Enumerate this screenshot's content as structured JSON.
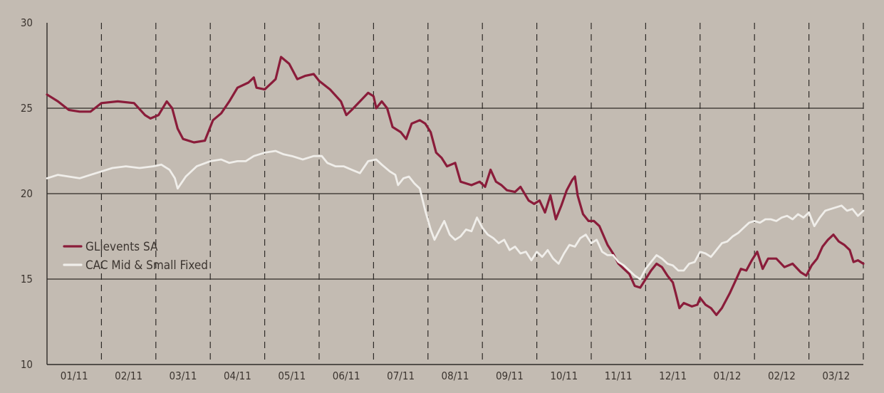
{
  "chart_data": {
    "type": "line",
    "title": "",
    "xlabel": "",
    "ylabel": "",
    "ylim": [
      10,
      30
    ],
    "yticks": [
      10,
      15,
      20,
      25,
      30
    ],
    "x_labels": [
      "01/11",
      "02/11",
      "03/11",
      "04/11",
      "05/11",
      "06/11",
      "07/11",
      "08/11",
      "09/11",
      "10/11",
      "11/11",
      "12/11",
      "01/12",
      "02/12",
      "03/12"
    ],
    "grid": {
      "horizontal": "solid at 15, 20, 25",
      "vertical": "dashed at month boundaries"
    },
    "legend_position": "left-middle",
    "colors": {
      "background": "#c3bbb2",
      "axis": "#2e2a27",
      "grid_horizontal": "#2e2a27",
      "grid_vertical": "#2e2a27",
      "text": "#3c3530"
    },
    "series": [
      {
        "name": "GLievents SA",
        "color": "#8a1c3a",
        "points": [
          [
            0.0,
            25.8
          ],
          [
            0.2,
            25.4
          ],
          [
            0.4,
            24.9
          ],
          [
            0.6,
            24.8
          ],
          [
            0.8,
            24.8
          ],
          [
            1.0,
            25.3
          ],
          [
            1.3,
            25.4
          ],
          [
            1.6,
            25.3
          ],
          [
            1.8,
            24.6
          ],
          [
            1.9,
            24.4
          ],
          [
            2.05,
            24.6
          ],
          [
            2.2,
            25.4
          ],
          [
            2.3,
            25.0
          ],
          [
            2.4,
            23.8
          ],
          [
            2.5,
            23.2
          ],
          [
            2.7,
            23.0
          ],
          [
            2.9,
            23.1
          ],
          [
            3.05,
            24.3
          ],
          [
            3.2,
            24.7
          ],
          [
            3.35,
            25.4
          ],
          [
            3.5,
            26.2
          ],
          [
            3.7,
            26.5
          ],
          [
            3.8,
            26.8
          ],
          [
            3.85,
            26.2
          ],
          [
            4.0,
            26.1
          ],
          [
            4.2,
            26.7
          ],
          [
            4.3,
            28.0
          ],
          [
            4.45,
            27.6
          ],
          [
            4.6,
            26.7
          ],
          [
            4.75,
            26.9
          ],
          [
            4.9,
            27.0
          ],
          [
            5.0,
            26.6
          ],
          [
            5.2,
            26.1
          ],
          [
            5.4,
            25.4
          ],
          [
            5.5,
            24.6
          ],
          [
            5.6,
            24.9
          ],
          [
            5.75,
            25.4
          ],
          [
            5.9,
            25.9
          ],
          [
            6.0,
            25.7
          ],
          [
            6.05,
            25.0
          ],
          [
            6.15,
            25.4
          ],
          [
            6.25,
            25.0
          ],
          [
            6.35,
            23.9
          ],
          [
            6.5,
            23.6
          ],
          [
            6.6,
            23.2
          ],
          [
            6.7,
            24.1
          ],
          [
            6.85,
            24.3
          ],
          [
            6.95,
            24.1
          ],
          [
            7.05,
            23.6
          ],
          [
            7.15,
            22.4
          ],
          [
            7.25,
            22.1
          ],
          [
            7.35,
            21.6
          ],
          [
            7.5,
            21.8
          ],
          [
            7.6,
            20.7
          ],
          [
            7.8,
            20.5
          ],
          [
            7.95,
            20.7
          ],
          [
            8.05,
            20.4
          ],
          [
            8.15,
            21.4
          ],
          [
            8.25,
            20.7
          ],
          [
            8.35,
            20.5
          ],
          [
            8.45,
            20.2
          ],
          [
            8.6,
            20.1
          ],
          [
            8.7,
            20.4
          ],
          [
            8.85,
            19.6
          ],
          [
            8.95,
            19.4
          ],
          [
            9.05,
            19.6
          ],
          [
            9.15,
            18.9
          ],
          [
            9.25,
            19.9
          ],
          [
            9.35,
            18.5
          ],
          [
            9.45,
            19.3
          ],
          [
            9.55,
            20.2
          ],
          [
            9.65,
            20.8
          ],
          [
            9.7,
            21.0
          ],
          [
            9.75,
            19.9
          ],
          [
            9.85,
            18.8
          ],
          [
            9.95,
            18.4
          ],
          [
            10.05,
            18.4
          ],
          [
            10.15,
            18.1
          ],
          [
            10.3,
            17.0
          ],
          [
            10.4,
            16.5
          ],
          [
            10.5,
            15.9
          ],
          [
            10.6,
            15.6
          ],
          [
            10.7,
            15.3
          ],
          [
            10.8,
            14.6
          ],
          [
            10.9,
            14.5
          ],
          [
            11.0,
            15.0
          ],
          [
            11.1,
            15.5
          ],
          [
            11.2,
            15.9
          ],
          [
            11.3,
            15.7
          ],
          [
            11.4,
            15.2
          ],
          [
            11.5,
            14.8
          ],
          [
            11.55,
            14.2
          ],
          [
            11.62,
            13.3
          ],
          [
            11.7,
            13.6
          ],
          [
            11.85,
            13.4
          ],
          [
            11.95,
            13.5
          ],
          [
            12.0,
            13.9
          ],
          [
            12.1,
            13.5
          ],
          [
            12.2,
            13.3
          ],
          [
            12.3,
            12.9
          ],
          [
            12.4,
            13.3
          ],
          [
            12.55,
            14.2
          ],
          [
            12.65,
            14.9
          ],
          [
            12.75,
            15.6
          ],
          [
            12.85,
            15.5
          ],
          [
            12.95,
            16.1
          ],
          [
            13.05,
            16.6
          ],
          [
            13.15,
            15.6
          ],
          [
            13.25,
            16.2
          ],
          [
            13.4,
            16.2
          ],
          [
            13.55,
            15.7
          ],
          [
            13.7,
            15.9
          ],
          [
            13.85,
            15.4
          ],
          [
            13.95,
            15.2
          ],
          [
            14.05,
            15.8
          ],
          [
            14.15,
            16.2
          ],
          [
            14.25,
            16.9
          ],
          [
            14.35,
            17.3
          ],
          [
            14.45,
            17.6
          ],
          [
            14.55,
            17.2
          ],
          [
            14.65,
            17.0
          ],
          [
            14.75,
            16.7
          ],
          [
            14.82,
            16.0
          ],
          [
            14.9,
            16.1
          ],
          [
            15.0,
            15.9
          ]
        ]
      },
      {
        "name": "CAC Mid & Small Fixed",
        "color": "#f0eeea",
        "points": [
          [
            0.0,
            20.9
          ],
          [
            0.2,
            21.1
          ],
          [
            0.4,
            21.0
          ],
          [
            0.6,
            20.9
          ],
          [
            0.8,
            21.1
          ],
          [
            1.0,
            21.3
          ],
          [
            1.2,
            21.5
          ],
          [
            1.45,
            21.6
          ],
          [
            1.7,
            21.5
          ],
          [
            1.95,
            21.6
          ],
          [
            2.1,
            21.7
          ],
          [
            2.25,
            21.4
          ],
          [
            2.35,
            20.9
          ],
          [
            2.4,
            20.3
          ],
          [
            2.55,
            21.0
          ],
          [
            2.75,
            21.6
          ],
          [
            3.0,
            21.9
          ],
          [
            3.2,
            22.0
          ],
          [
            3.35,
            21.8
          ],
          [
            3.5,
            21.9
          ],
          [
            3.65,
            21.9
          ],
          [
            3.8,
            22.2
          ],
          [
            4.0,
            22.4
          ],
          [
            4.2,
            22.5
          ],
          [
            4.35,
            22.3
          ],
          [
            4.5,
            22.2
          ],
          [
            4.7,
            22.0
          ],
          [
            4.9,
            22.2
          ],
          [
            5.05,
            22.2
          ],
          [
            5.15,
            21.8
          ],
          [
            5.3,
            21.6
          ],
          [
            5.45,
            21.6
          ],
          [
            5.6,
            21.4
          ],
          [
            5.75,
            21.2
          ],
          [
            5.9,
            21.9
          ],
          [
            6.05,
            22.0
          ],
          [
            6.15,
            21.7
          ],
          [
            6.3,
            21.3
          ],
          [
            6.4,
            21.1
          ],
          [
            6.45,
            20.5
          ],
          [
            6.55,
            20.9
          ],
          [
            6.65,
            21.0
          ],
          [
            6.75,
            20.6
          ],
          [
            6.85,
            20.3
          ],
          [
            6.95,
            19.0
          ],
          [
            7.05,
            17.9
          ],
          [
            7.12,
            17.3
          ],
          [
            7.2,
            17.8
          ],
          [
            7.3,
            18.4
          ],
          [
            7.4,
            17.6
          ],
          [
            7.5,
            17.3
          ],
          [
            7.6,
            17.5
          ],
          [
            7.7,
            17.9
          ],
          [
            7.8,
            17.8
          ],
          [
            7.9,
            18.6
          ],
          [
            8.0,
            18.0
          ],
          [
            8.1,
            17.6
          ],
          [
            8.2,
            17.4
          ],
          [
            8.3,
            17.1
          ],
          [
            8.4,
            17.3
          ],
          [
            8.5,
            16.7
          ],
          [
            8.6,
            16.9
          ],
          [
            8.7,
            16.5
          ],
          [
            8.8,
            16.6
          ],
          [
            8.9,
            16.1
          ],
          [
            9.0,
            16.6
          ],
          [
            9.1,
            16.3
          ],
          [
            9.2,
            16.7
          ],
          [
            9.3,
            16.2
          ],
          [
            9.4,
            15.9
          ],
          [
            9.5,
            16.5
          ],
          [
            9.6,
            17.0
          ],
          [
            9.7,
            16.9
          ],
          [
            9.8,
            17.4
          ],
          [
            9.9,
            17.6
          ],
          [
            10.0,
            17.1
          ],
          [
            10.1,
            17.3
          ],
          [
            10.2,
            16.6
          ],
          [
            10.3,
            16.4
          ],
          [
            10.4,
            16.4
          ],
          [
            10.5,
            16.0
          ],
          [
            10.6,
            15.8
          ],
          [
            10.7,
            15.5
          ],
          [
            10.8,
            15.2
          ],
          [
            10.9,
            15.0
          ],
          [
            11.0,
            15.6
          ],
          [
            11.1,
            16.0
          ],
          [
            11.2,
            16.4
          ],
          [
            11.3,
            16.2
          ],
          [
            11.4,
            15.9
          ],
          [
            11.5,
            15.8
          ],
          [
            11.6,
            15.5
          ],
          [
            11.7,
            15.5
          ],
          [
            11.8,
            15.9
          ],
          [
            11.9,
            16.0
          ],
          [
            12.0,
            16.6
          ],
          [
            12.1,
            16.5
          ],
          [
            12.2,
            16.3
          ],
          [
            12.3,
            16.7
          ],
          [
            12.4,
            17.1
          ],
          [
            12.5,
            17.2
          ],
          [
            12.6,
            17.5
          ],
          [
            12.7,
            17.7
          ],
          [
            12.8,
            18.0
          ],
          [
            12.9,
            18.3
          ],
          [
            13.0,
            18.4
          ],
          [
            13.1,
            18.3
          ],
          [
            13.2,
            18.5
          ],
          [
            13.3,
            18.5
          ],
          [
            13.4,
            18.4
          ],
          [
            13.5,
            18.6
          ],
          [
            13.6,
            18.7
          ],
          [
            13.7,
            18.5
          ],
          [
            13.8,
            18.8
          ],
          [
            13.9,
            18.6
          ],
          [
            14.0,
            18.9
          ],
          [
            14.1,
            18.1
          ],
          [
            14.2,
            18.6
          ],
          [
            14.3,
            19.0
          ],
          [
            14.4,
            19.1
          ],
          [
            14.5,
            19.2
          ],
          [
            14.6,
            19.3
          ],
          [
            14.7,
            19.0
          ],
          [
            14.8,
            19.1
          ],
          [
            14.9,
            18.7
          ],
          [
            15.0,
            19.0
          ]
        ]
      }
    ]
  }
}
